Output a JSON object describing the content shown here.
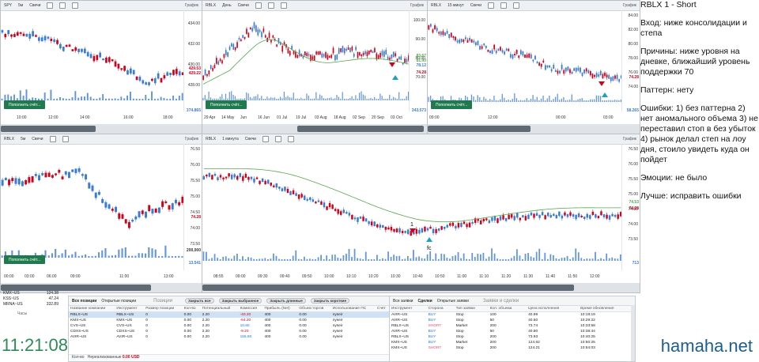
{
  "charts": {
    "c1": {
      "ticker": "SPY",
      "tf": "5м",
      "type": "Свечи",
      "title": "График",
      "prices": [
        "434.00",
        "432.00",
        "430.00",
        "428.00"
      ],
      "last_label": "429.53",
      "last_label2": "429.22",
      "volume": "374.865",
      "times": [
        "10:00",
        "12:00",
        "14:00",
        "16:00",
        "18:00"
      ],
      "button": "Пополнить счёт..."
    },
    "c2": {
      "ticker": "RBLX",
      "tf": "День",
      "type": "Свечи",
      "title": "График",
      "prices": [
        "100.00",
        "90.00",
        "80.00",
        "70.00"
      ],
      "last_label": "74.28",
      "volume": "343.573",
      "ma_labels": [
        "83.67",
        "81.90",
        "78.12"
      ],
      "times": [
        "29 Apr",
        "14 May",
        "Jun",
        "16 Jun",
        "01 Jul",
        "19 Jul",
        "03 Aug",
        "18 Aug",
        "02 Sep",
        "20 Sep",
        "03 Oct"
      ],
      "button": "Пополнить счёт..."
    },
    "c3": {
      "ticker": "RBLX",
      "tf": "15 минут",
      "type": "Свечи",
      "title": "График",
      "prices": [
        "84.00",
        "82.00",
        "80.00",
        "78.00",
        "76.00",
        "74.00"
      ],
      "last_label": "74.28",
      "volume": "58.265",
      "times": [
        "09:00",
        "12:00",
        "00:00",
        "03:00"
      ],
      "button": "Пополнить счёт..."
    },
    "c4": {
      "ticker": "RBLX",
      "tf": "5м",
      "type": "Свечи",
      "title": "График",
      "prices": [
        "76.50",
        "76.00",
        "75.50",
        "75.00",
        "74.50",
        "74.00",
        "73.50",
        "73.00"
      ],
      "last_label": "74.28",
      "volume": "13.541",
      "vol_scale": "200,000",
      "times": [
        "00:00",
        "03:00",
        "06:00",
        "09:00",
        "11:00",
        "13:00"
      ],
      "button": "Пополнить счёт..."
    },
    "c5": {
      "ticker": "RBLX",
      "tf": "1 минута",
      "type": "Свечи",
      "title": "График",
      "prices": [
        "76.50",
        "76.00",
        "75.50",
        "75.00",
        "74.50",
        "74.00",
        "73.50",
        "73.00",
        "72.50"
      ],
      "last_label": "74.28",
      "last_label2": "74.53",
      "volume": "713",
      "annot_num": "1",
      "annot_fc": "fc",
      "times": [
        "08:55",
        "09:00",
        "09:30",
        "09:40",
        "09:50",
        "10:00",
        "10:10",
        "10:20",
        "10:30",
        "10:40",
        "10:50",
        "11:00",
        "11:10",
        "11:20",
        "11:30",
        "11:40",
        "11:50",
        "12:00"
      ],
      "button": "Пополнить счёт..."
    }
  },
  "watchlist": {
    "rows": [
      {
        "sym": "KMX~US",
        "px": "124.38"
      },
      {
        "sym": "KSS~US",
        "px": "47.24"
      },
      {
        "sym": "MRNA~US",
        "px": "332.89"
      }
    ],
    "header": "Часы"
  },
  "clock": "11:21:08",
  "positions": {
    "tabs": [
      "Все позиции",
      "Открытые позиции"
    ],
    "center": "Позиции",
    "buttons": [
      "Закрыть все",
      "Закрыть выбранное",
      "Закрыть длинные",
      "Закрыть короткие"
    ],
    "columns": [
      "Название компании",
      "Инструмент",
      "Размер позиции",
      "Кол-во",
      "Потенциальный",
      "Комиссия",
      "Прибыль (Net)",
      "Объем торгов",
      "Использование ПС",
      "Счёт"
    ],
    "rows": [
      {
        "name": "RBLX~US",
        "inst": "RBLX~US",
        "size": "0",
        "qty": "0.00",
        "pot": "2.20",
        "fee": "-40.20",
        "net": "400",
        "vol": "0.00",
        "use": "nyseir"
      },
      {
        "name": "KMX~US",
        "inst": "KMX~US",
        "size": "0",
        "qty": "0.00",
        "pot": "2.20",
        "fee": "-64.20",
        "net": "400",
        "vol": "0.00",
        "use": "nyseir"
      },
      {
        "name": "CVS~US",
        "inst": "CVS~US",
        "size": "0",
        "qty": "0.00",
        "pot": "2.20",
        "fee": "10.80",
        "net": "400",
        "vol": "0.00",
        "use": "nyseir"
      },
      {
        "name": "CDXS~US",
        "inst": "CDXS~US",
        "size": "0",
        "qty": "0.00",
        "pot": "2.20",
        "fee": "-9.20",
        "net": "400",
        "vol": "0.00",
        "use": "nyseir"
      },
      {
        "name": "AVIR~US",
        "inst": "AVIR~US",
        "size": "0",
        "qty": "0.00",
        "pot": "2.20",
        "fee": "155.80",
        "net": "400",
        "vol": "0.00",
        "use": "nyseir"
      }
    ],
    "footer_label": "Кол-во",
    "footer_text": "Нереализованные",
    "footer_value": "0.00 USD"
  },
  "deals": {
    "tabs": [
      "Все заявки",
      "Сделки",
      "Открытые заявки"
    ],
    "center": "Заявки и сделки",
    "columns": [
      "Инструмент",
      "Сторона",
      "Тип заявки",
      "Кол. объема",
      "Цена исполнения",
      "Время обновления"
    ],
    "rows": [
      {
        "inst": "AVIR~US",
        "side": "BUY",
        "type": "Stop",
        "qty": "100",
        "px": "40.99",
        "time": "10:19:19"
      },
      {
        "inst": "AVIR~US",
        "side": "BUY",
        "type": "Stop",
        "qty": "50",
        "px": "40.50",
        "time": "10:29:22"
      },
      {
        "inst": "RBLX~US",
        "side": "SHORT",
        "type": "Market",
        "qty": "200",
        "px": "73.74",
        "time": "10:33:58"
      },
      {
        "inst": "AVIR~US",
        "side": "BUY",
        "type": "Stop",
        "qty": "50",
        "px": "40.80",
        "time": "10:38:44"
      },
      {
        "inst": "RBLX~US",
        "side": "BUY",
        "type": "Stop",
        "qty": "200",
        "px": "73.93",
        "time": "10:40:25"
      },
      {
        "inst": "KMX~US",
        "side": "BUY",
        "type": "Market",
        "qty": "200",
        "px": "124.62",
        "time": "10:50:25"
      },
      {
        "inst": "KMX~US",
        "side": "SHORT",
        "type": "Stop",
        "qty": "200",
        "px": "124.21",
        "time": "10:54:03"
      }
    ]
  },
  "notes": {
    "title": "RBLX 1 - Short",
    "entry": "Вход: ниже консолидации и степа",
    "reasons": "Причины: ниже уровня на дневке, ближайший уровень поддержки 70",
    "pattern": "Паттерн: нету",
    "errors": "Ошибки: 1) без паттерна 2) нет аномального объема 3) не переставил стоп в без убыток 4) рынок делал степ на лоу дня, стоило увидеть куда он пойдет",
    "emotions": "Эмоции: не было",
    "better": "Лучше: исправить ошибки"
  },
  "brand": "hamaha.net",
  "colors": {
    "up": "#3a7bd5",
    "down": "#d0021b",
    "ma": "#55a84a",
    "button": "#1f7a4d",
    "clock": "#2e8b57",
    "brand": "#1a5f8f"
  }
}
